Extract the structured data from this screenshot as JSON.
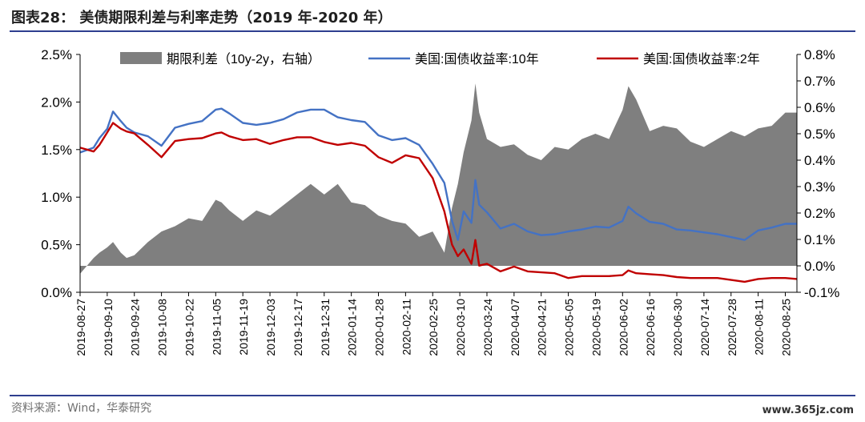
{
  "header": {
    "title": "图表28：  美债期限利差与利率走势（2019 年-2020 年）"
  },
  "footer": {
    "source": "资料来源：Wind，华泰研究",
    "watermark": "www.365jz.com"
  },
  "chart_data": {
    "type": "line",
    "x_tick_labels": [
      "2019-08-27",
      "2019-09-10",
      "2019-09-24",
      "2019-10-08",
      "2019-10-22",
      "2019-11-05",
      "2019-11-19",
      "2019-12-03",
      "2019-12-17",
      "2019-12-31",
      "2020-01-14",
      "2020-01-28",
      "2020-02-11",
      "2020-02-25",
      "2020-03-10",
      "2020-03-24",
      "2020-04-07",
      "2020-04-21",
      "2020-05-05",
      "2020-05-19",
      "2020-06-02",
      "2020-06-16",
      "2020-06-30",
      "2020-07-14",
      "2020-07-28",
      "2020-08-11",
      "2020-08-25"
    ],
    "y_left": {
      "ticks": [
        "0.0%",
        "0.5%",
        "1.0%",
        "1.5%",
        "2.0%",
        "2.5%"
      ],
      "range": [
        0,
        2.5
      ]
    },
    "y_right": {
      "ticks": [
        "-0.1%",
        "0.0%",
        "0.1%",
        "0.2%",
        "0.3%",
        "0.4%",
        "0.5%",
        "0.6%",
        "0.7%",
        "0.8%"
      ],
      "range": [
        -0.1,
        0.8
      ]
    },
    "legend_position": "top",
    "series": [
      {
        "name": "期限利差（10y-2y，右轴）",
        "type": "area",
        "axis": "right",
        "color": "#7f7f7f",
        "x": [
          "2019-08-27",
          "2019-09-03",
          "2019-09-06",
          "2019-09-10",
          "2019-09-13",
          "2019-09-17",
          "2019-09-20",
          "2019-09-24",
          "2019-10-01",
          "2019-10-08",
          "2019-10-15",
          "2019-10-22",
          "2019-10-29",
          "2019-11-05",
          "2019-11-08",
          "2019-11-12",
          "2019-11-19",
          "2019-11-26",
          "2019-12-03",
          "2019-12-10",
          "2019-12-17",
          "2019-12-24",
          "2019-12-31",
          "2020-01-07",
          "2020-01-14",
          "2020-01-21",
          "2020-01-28",
          "2020-02-04",
          "2020-02-11",
          "2020-02-18",
          "2020-02-25",
          "2020-03-02",
          "2020-03-06",
          "2020-03-09",
          "2020-03-12",
          "2020-03-16",
          "2020-03-18",
          "2020-03-20",
          "2020-03-24",
          "2020-03-31",
          "2020-04-07",
          "2020-04-14",
          "2020-04-21",
          "2020-04-28",
          "2020-05-05",
          "2020-05-12",
          "2020-05-19",
          "2020-05-26",
          "2020-06-02",
          "2020-06-05",
          "2020-06-09",
          "2020-06-16",
          "2020-06-23",
          "2020-06-30",
          "2020-07-07",
          "2020-07-14",
          "2020-07-21",
          "2020-07-28",
          "2020-08-04",
          "2020-08-11",
          "2020-08-18",
          "2020-08-25",
          "2020-08-31"
        ],
        "values": [
          -0.03,
          0.03,
          0.05,
          0.07,
          0.09,
          0.05,
          0.03,
          0.04,
          0.09,
          0.13,
          0.15,
          0.18,
          0.17,
          0.25,
          0.24,
          0.21,
          0.17,
          0.21,
          0.19,
          0.23,
          0.27,
          0.31,
          0.27,
          0.31,
          0.24,
          0.23,
          0.19,
          0.17,
          0.16,
          0.11,
          0.13,
          0.05,
          0.22,
          0.31,
          0.43,
          0.55,
          0.69,
          0.58,
          0.48,
          0.45,
          0.46,
          0.42,
          0.4,
          0.45,
          0.44,
          0.48,
          0.5,
          0.48,
          0.59,
          0.68,
          0.63,
          0.51,
          0.53,
          0.52,
          0.47,
          0.45,
          0.48,
          0.51,
          0.49,
          0.52,
          0.53,
          0.58,
          0.58
        ]
      },
      {
        "name": "美国:国债收益率:10年",
        "type": "line",
        "axis": "left",
        "color": "#4472c4",
        "x": [
          "2019-08-27",
          "2019-09-03",
          "2019-09-06",
          "2019-09-10",
          "2019-09-13",
          "2019-09-17",
          "2019-09-20",
          "2019-09-24",
          "2019-10-01",
          "2019-10-08",
          "2019-10-15",
          "2019-10-22",
          "2019-10-29",
          "2019-11-05",
          "2019-11-08",
          "2019-11-12",
          "2019-11-19",
          "2019-11-26",
          "2019-12-03",
          "2019-12-10",
          "2019-12-17",
          "2019-12-24",
          "2019-12-31",
          "2020-01-07",
          "2020-01-14",
          "2020-01-21",
          "2020-01-28",
          "2020-02-04",
          "2020-02-11",
          "2020-02-18",
          "2020-02-25",
          "2020-03-02",
          "2020-03-06",
          "2020-03-09",
          "2020-03-12",
          "2020-03-16",
          "2020-03-18",
          "2020-03-20",
          "2020-03-24",
          "2020-03-31",
          "2020-04-07",
          "2020-04-14",
          "2020-04-21",
          "2020-04-28",
          "2020-05-05",
          "2020-05-12",
          "2020-05-19",
          "2020-05-26",
          "2020-06-02",
          "2020-06-05",
          "2020-06-09",
          "2020-06-16",
          "2020-06-23",
          "2020-06-30",
          "2020-07-07",
          "2020-07-14",
          "2020-07-21",
          "2020-07-28",
          "2020-08-04",
          "2020-08-11",
          "2020-08-18",
          "2020-08-25",
          "2020-08-31"
        ],
        "values": [
          1.47,
          1.52,
          1.62,
          1.72,
          1.9,
          1.8,
          1.73,
          1.68,
          1.64,
          1.54,
          1.73,
          1.77,
          1.8,
          1.92,
          1.93,
          1.88,
          1.78,
          1.76,
          1.78,
          1.82,
          1.89,
          1.92,
          1.92,
          1.84,
          1.81,
          1.79,
          1.65,
          1.6,
          1.62,
          1.55,
          1.35,
          1.15,
          0.75,
          0.55,
          0.85,
          0.73,
          1.18,
          0.92,
          0.84,
          0.67,
          0.72,
          0.64,
          0.6,
          0.61,
          0.64,
          0.66,
          0.69,
          0.68,
          0.75,
          0.9,
          0.83,
          0.74,
          0.72,
          0.66,
          0.65,
          0.63,
          0.61,
          0.58,
          0.55,
          0.65,
          0.68,
          0.72,
          0.72
        ]
      },
      {
        "name": "美国:国债收益率:2年",
        "type": "line",
        "axis": "left",
        "color": "#c00000",
        "x": [
          "2019-08-27",
          "2019-09-03",
          "2019-09-06",
          "2019-09-10",
          "2019-09-13",
          "2019-09-17",
          "2019-09-20",
          "2019-09-24",
          "2019-10-01",
          "2019-10-08",
          "2019-10-15",
          "2019-10-22",
          "2019-10-29",
          "2019-11-05",
          "2019-11-08",
          "2019-11-12",
          "2019-11-19",
          "2019-11-26",
          "2019-12-03",
          "2019-12-10",
          "2019-12-17",
          "2019-12-24",
          "2019-12-31",
          "2020-01-07",
          "2020-01-14",
          "2020-01-21",
          "2020-01-28",
          "2020-02-04",
          "2020-02-11",
          "2020-02-18",
          "2020-02-25",
          "2020-03-02",
          "2020-03-06",
          "2020-03-09",
          "2020-03-12",
          "2020-03-16",
          "2020-03-18",
          "2020-03-20",
          "2020-03-24",
          "2020-03-31",
          "2020-04-07",
          "2020-04-14",
          "2020-04-21",
          "2020-04-28",
          "2020-05-05",
          "2020-05-12",
          "2020-05-19",
          "2020-05-26",
          "2020-06-02",
          "2020-06-05",
          "2020-06-09",
          "2020-06-16",
          "2020-06-23",
          "2020-06-30",
          "2020-07-07",
          "2020-07-14",
          "2020-07-21",
          "2020-07-28",
          "2020-08-04",
          "2020-08-11",
          "2020-08-18",
          "2020-08-25",
          "2020-08-31"
        ],
        "values": [
          1.52,
          1.48,
          1.55,
          1.68,
          1.78,
          1.72,
          1.69,
          1.67,
          1.55,
          1.42,
          1.59,
          1.61,
          1.62,
          1.67,
          1.68,
          1.64,
          1.6,
          1.61,
          1.56,
          1.6,
          1.63,
          1.63,
          1.58,
          1.55,
          1.57,
          1.54,
          1.42,
          1.36,
          1.44,
          1.41,
          1.2,
          0.85,
          0.5,
          0.38,
          0.45,
          0.3,
          0.55,
          0.28,
          0.3,
          0.22,
          0.27,
          0.22,
          0.21,
          0.2,
          0.15,
          0.17,
          0.17,
          0.17,
          0.18,
          0.23,
          0.2,
          0.19,
          0.18,
          0.16,
          0.15,
          0.15,
          0.15,
          0.13,
          0.11,
          0.14,
          0.15,
          0.15,
          0.14
        ]
      }
    ]
  }
}
